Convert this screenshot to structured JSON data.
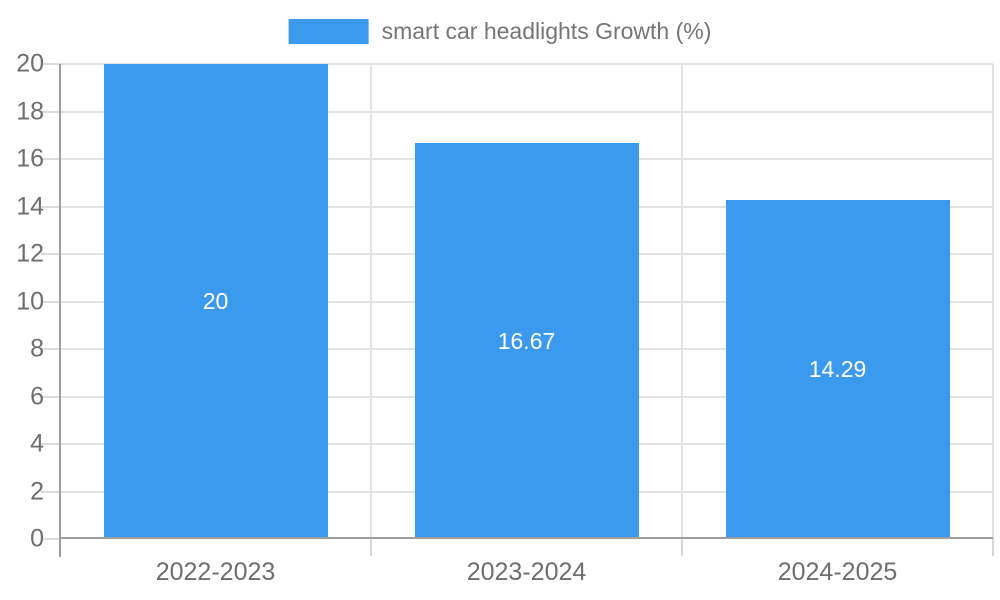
{
  "legend": {
    "label": "smart car headlights Growth (%)"
  },
  "chart_data": {
    "type": "bar",
    "title": "",
    "series_name": "smart car headlights Growth (%)",
    "categories": [
      "2022-2023",
      "2023-2024",
      "2024-2025"
    ],
    "values": [
      20,
      16.67,
      14.29
    ],
    "value_labels": [
      "20",
      "16.67",
      "14.29"
    ],
    "xlabel": "",
    "ylabel": "",
    "ylim": [
      0,
      20
    ],
    "ytick_step": 2,
    "yticks": [
      0,
      2,
      4,
      6,
      8,
      10,
      12,
      14,
      16,
      18,
      20
    ],
    "grid": true,
    "legend_position": "top-center",
    "value_label_position": "inside-center"
  },
  "colors": {
    "bar": "#3B99EE",
    "value_label": "#FFFFFF",
    "grid_line": "#E3E3E3",
    "axis_line": "#9E9E9E",
    "tick_mark": "#DCDCDC",
    "tick_label": "#6E6E6E",
    "legend_text": "#757575",
    "background": "#FFFFFF"
  }
}
